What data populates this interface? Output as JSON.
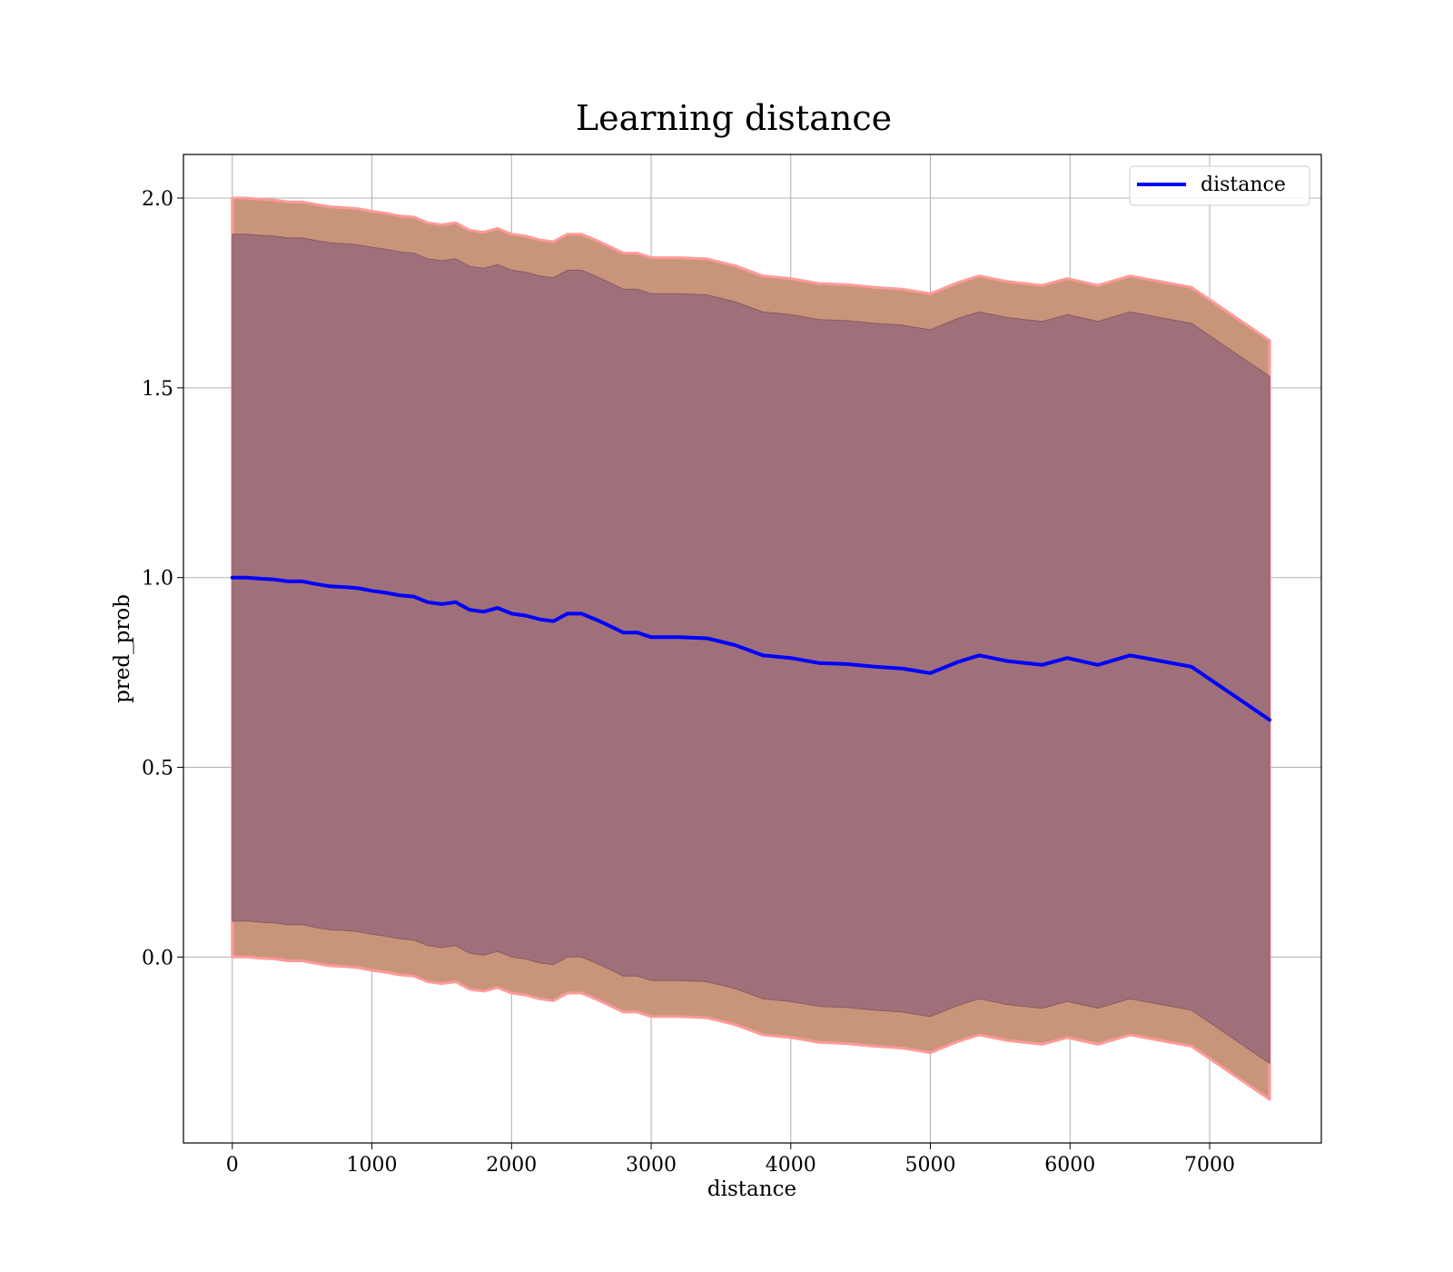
{
  "chart_data": {
    "type": "line",
    "title": "Learning distance",
    "xlabel": "distance",
    "ylabel": "pred_prob",
    "xlim": [
      -350,
      7800
    ],
    "ylim": [
      -0.49,
      2.115
    ],
    "xticks": [
      0,
      1000,
      2000,
      3000,
      4000,
      5000,
      6000,
      7000
    ],
    "yticks": [
      0.0,
      0.5,
      1.0,
      1.5,
      2.0
    ],
    "xtick_labels": [
      "0",
      "1000",
      "2000",
      "3000",
      "4000",
      "5000",
      "6000",
      "7000"
    ],
    "ytick_labels": [
      "0.0",
      "0.5",
      "1.0",
      "1.5",
      "2.0"
    ],
    "grid": true,
    "legend_position": "top-right",
    "colors": {
      "line": "#0000ff",
      "outer_band": "#c8957a",
      "inner_band": "#a0707a",
      "outer_edge": "#ff9a9a",
      "grid": "#b0b0b0"
    },
    "x": [
      0,
      100,
      200,
      300,
      400,
      500,
      600,
      700,
      800,
      900,
      1000,
      1100,
      1200,
      1300,
      1400,
      1500,
      1600,
      1700,
      1800,
      1900,
      2000,
      2100,
      2200,
      2300,
      2400,
      2500,
      2600,
      2700,
      2800,
      2900,
      3000,
      3200,
      3400,
      3600,
      3800,
      4000,
      4200,
      4400,
      4600,
      4800,
      5000,
      5200,
      5350,
      5550,
      5800,
      5980,
      6200,
      6430,
      6870,
      7430
    ],
    "series": [
      {
        "name": "distance",
        "values": [
          1.0,
          1.0,
          0.997,
          0.995,
          0.99,
          0.99,
          0.983,
          0.977,
          0.975,
          0.972,
          0.965,
          0.96,
          0.953,
          0.95,
          0.935,
          0.93,
          0.935,
          0.915,
          0.91,
          0.92,
          0.905,
          0.9,
          0.89,
          0.885,
          0.905,
          0.905,
          0.89,
          0.873,
          0.855,
          0.855,
          0.843,
          0.843,
          0.84,
          0.822,
          0.795,
          0.788,
          0.775,
          0.772,
          0.765,
          0.76,
          0.748,
          0.778,
          0.795,
          0.78,
          0.77,
          0.788,
          0.77,
          0.795,
          0.765,
          0.625
        ]
      }
    ],
    "outer_band": {
      "upper": [
        2.0,
        2.0,
        1.997,
        1.995,
        1.99,
        1.99,
        1.983,
        1.977,
        1.975,
        1.972,
        1.965,
        1.96,
        1.953,
        1.95,
        1.935,
        1.93,
        1.935,
        1.915,
        1.91,
        1.92,
        1.905,
        1.9,
        1.89,
        1.885,
        1.905,
        1.905,
        1.89,
        1.873,
        1.855,
        1.855,
        1.843,
        1.843,
        1.84,
        1.822,
        1.795,
        1.788,
        1.775,
        1.772,
        1.765,
        1.76,
        1.748,
        1.778,
        1.795,
        1.78,
        1.77,
        1.788,
        1.77,
        1.795,
        1.765,
        1.625
      ],
      "lower": [
        0.0,
        0.0,
        -0.003,
        -0.005,
        -0.01,
        -0.01,
        -0.017,
        -0.023,
        -0.025,
        -0.028,
        -0.035,
        -0.04,
        -0.047,
        -0.05,
        -0.065,
        -0.07,
        -0.065,
        -0.085,
        -0.09,
        -0.08,
        -0.095,
        -0.1,
        -0.11,
        -0.115,
        -0.095,
        -0.095,
        -0.11,
        -0.127,
        -0.145,
        -0.145,
        -0.157,
        -0.157,
        -0.16,
        -0.178,
        -0.205,
        -0.212,
        -0.225,
        -0.228,
        -0.235,
        -0.24,
        -0.252,
        -0.222,
        -0.205,
        -0.22,
        -0.23,
        -0.212,
        -0.23,
        -0.205,
        -0.235,
        -0.375
      ]
    },
    "inner_band": {
      "upper": [
        1.905,
        1.905,
        1.902,
        1.9,
        1.895,
        1.895,
        1.888,
        1.882,
        1.88,
        1.877,
        1.87,
        1.865,
        1.858,
        1.855,
        1.84,
        1.835,
        1.84,
        1.82,
        1.815,
        1.825,
        1.81,
        1.805,
        1.795,
        1.79,
        1.81,
        1.81,
        1.795,
        1.778,
        1.76,
        1.76,
        1.748,
        1.748,
        1.745,
        1.727,
        1.7,
        1.693,
        1.68,
        1.677,
        1.67,
        1.665,
        1.653,
        1.683,
        1.7,
        1.685,
        1.675,
        1.693,
        1.675,
        1.7,
        1.67,
        1.53
      ],
      "lower": [
        0.095,
        0.095,
        0.092,
        0.09,
        0.085,
        0.085,
        0.078,
        0.072,
        0.07,
        0.067,
        0.06,
        0.055,
        0.048,
        0.045,
        0.03,
        0.025,
        0.03,
        0.01,
        0.005,
        0.015,
        0.0,
        -0.005,
        -0.015,
        -0.02,
        0.0,
        0.0,
        -0.015,
        -0.032,
        -0.05,
        -0.05,
        -0.062,
        -0.062,
        -0.065,
        -0.083,
        -0.11,
        -0.117,
        -0.13,
        -0.133,
        -0.14,
        -0.145,
        -0.157,
        -0.127,
        -0.11,
        -0.125,
        -0.135,
        -0.117,
        -0.135,
        -0.11,
        -0.14,
        -0.28
      ]
    }
  }
}
